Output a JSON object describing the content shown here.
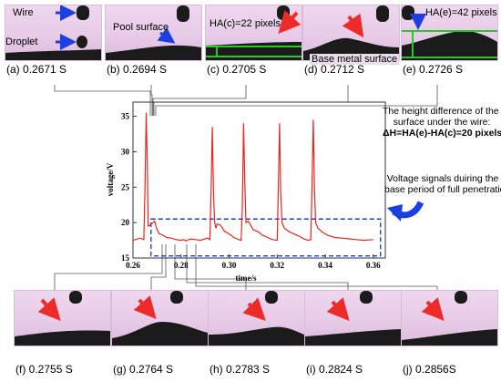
{
  "top_frames": [
    {
      "letter": "(a)",
      "time": "0.2671 S"
    },
    {
      "letter": "(b)",
      "time": "0.2694 S"
    },
    {
      "letter": "(c)",
      "time": "0.2705 S"
    },
    {
      "letter": "(d)",
      "time": "0.2712 S"
    },
    {
      "letter": "(e)",
      "time": "0.2726 S"
    }
  ],
  "bottom_frames": [
    {
      "letter": "(f)",
      "time": "0.2755 S"
    },
    {
      "letter": "(g)",
      "time": "0.2764 S"
    },
    {
      "letter": "(h)",
      "time": "0.2783 S"
    },
    {
      "letter": "(i)",
      "time": "0.2824 S"
    },
    {
      "letter": "(j)",
      "time": "0.2856S"
    }
  ],
  "annotations": {
    "wire": "Wire",
    "droplet": "Droplet",
    "pool_surface": "Pool surface",
    "h_c": "HA(c)=22 pixels",
    "h_e": "HA(e)=42 pixels",
    "base_metal": "Base metal surface"
  },
  "notes": {
    "height_line1": "The height difference of the pool",
    "height_line2": "surface  under the wire:",
    "height_line3": "ΔH=HA(e)-HA(c)=20 pixels",
    "voltage_line1": "Voltage signals duiring the",
    "voltage_line2": "base period of full penetration"
  },
  "colors": {
    "signal": "#e8261e",
    "arrow_red": "#ee2b2b",
    "arrow_blue": "#1e3fe0",
    "green": "#22cc22",
    "box": "#1e3fe0"
  },
  "chart_data": {
    "type": "line",
    "xlabel": "time/s",
    "ylabel": "voltage/V",
    "xlim": [
      0.26,
      0.365
    ],
    "ylim": [
      15,
      37
    ],
    "xticks": [
      "0.26",
      "0.28",
      "0.30",
      "0.32",
      "0.34",
      "0.36"
    ],
    "yticks": [
      "15",
      "20",
      "25",
      "30",
      "35"
    ],
    "series": [
      {
        "x": [
          0.26,
          0.263,
          0.2645,
          0.265,
          0.2655,
          0.266,
          0.2663,
          0.267,
          0.269,
          0.27,
          0.271,
          0.272,
          0.274,
          0.276,
          0.278,
          0.28,
          0.281,
          0.282,
          0.284,
          0.286,
          0.288,
          0.291,
          0.292,
          0.2925,
          0.293,
          0.2935,
          0.294,
          0.2945,
          0.295,
          0.2965,
          0.298,
          0.3,
          0.302,
          0.304,
          0.305,
          0.3055,
          0.306,
          0.3065,
          0.307,
          0.308,
          0.31,
          0.312,
          0.314,
          0.316,
          0.318,
          0.32,
          0.3205,
          0.321,
          0.3215,
          0.322,
          0.323,
          0.325,
          0.327,
          0.329,
          0.331,
          0.333,
          0.334,
          0.3345,
          0.335,
          0.3355,
          0.336,
          0.337,
          0.339,
          0.341,
          0.344,
          0.347,
          0.35,
          0.353,
          0.356,
          0.36
        ],
        "y": [
          17.5,
          17.8,
          17.6,
          25,
          35.5,
          28,
          19.5,
          19.6,
          20.2,
          19.0,
          18.4,
          18.3,
          17.9,
          17.8,
          17.6,
          17.5,
          17.6,
          17.4,
          17.7,
          17.6,
          17.5,
          17.8,
          17.6,
          24,
          33.5,
          24,
          20,
          19.2,
          19.8,
          19.6,
          18.8,
          18.4,
          17.9,
          17.6,
          17.5,
          22,
          34,
          26,
          20,
          20.2,
          19,
          18.7,
          18.2,
          17.9,
          17.6,
          17.5,
          25,
          34,
          24,
          20,
          19.2,
          18.7,
          18.4,
          18.1,
          17.7,
          17.5,
          17.6,
          25,
          34.5,
          25,
          20,
          19.2,
          18.6,
          18.2,
          17.9,
          17.8,
          17.7,
          17.6,
          17.5,
          17.6
        ]
      }
    ],
    "highlight_box": {
      "x": [
        0.2675,
        0.363
      ],
      "y": [
        15.3,
        20.5
      ]
    }
  }
}
